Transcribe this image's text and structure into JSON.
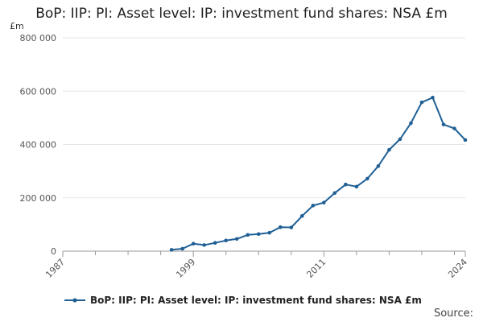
{
  "title": "BoP: IIP: PI: Asset level: IP: investment fund shares: NSA £m",
  "source_label": "Source:",
  "colors": {
    "series": "#206095",
    "grid": "#e6e6e6",
    "axis": "#999999"
  },
  "chart_data": {
    "type": "line",
    "title": "BoP: IIP: PI: Asset level: IP: investment fund shares: NSA £m",
    "ylabel": "£m",
    "xlabel": "",
    "xlim": [
      1987,
      2024
    ],
    "ylim": [
      0,
      800000
    ],
    "y_ticks": [
      0,
      200000,
      400000,
      600000,
      800000
    ],
    "y_tick_labels": [
      "0",
      "200 000",
      "400 000",
      "600 000",
      "800 000"
    ],
    "x_ticks": [
      1987,
      1999,
      2011,
      2024
    ],
    "x_tick_labels": [
      "1987",
      "1999",
      "2011",
      "2024"
    ],
    "x_minor_ticks": [
      1990,
      1993,
      1996,
      2002,
      2005,
      2008,
      2014,
      2017,
      2020,
      2023
    ],
    "grid": true,
    "legend_position": "bottom",
    "series": [
      {
        "name": "BoP: IIP: PI: Asset level: IP: investment fund shares: NSA £m",
        "x": [
          1997,
          1998,
          1999,
          2000,
          2001,
          2002,
          2003,
          2004,
          2005,
          2006,
          2007,
          2008,
          2009,
          2010,
          2011,
          2012,
          2013,
          2014,
          2015,
          2016,
          2017,
          2018,
          2019,
          2020,
          2021,
          2022,
          2023,
          2024
        ],
        "values": [
          5000,
          9000,
          28000,
          23000,
          31000,
          40000,
          46000,
          61000,
          64000,
          69000,
          90000,
          89000,
          132000,
          171000,
          182000,
          218000,
          250000,
          242000,
          272000,
          319000,
          380000,
          420000,
          480000,
          558000,
          576000,
          475000,
          460000,
          417000
        ]
      }
    ]
  }
}
